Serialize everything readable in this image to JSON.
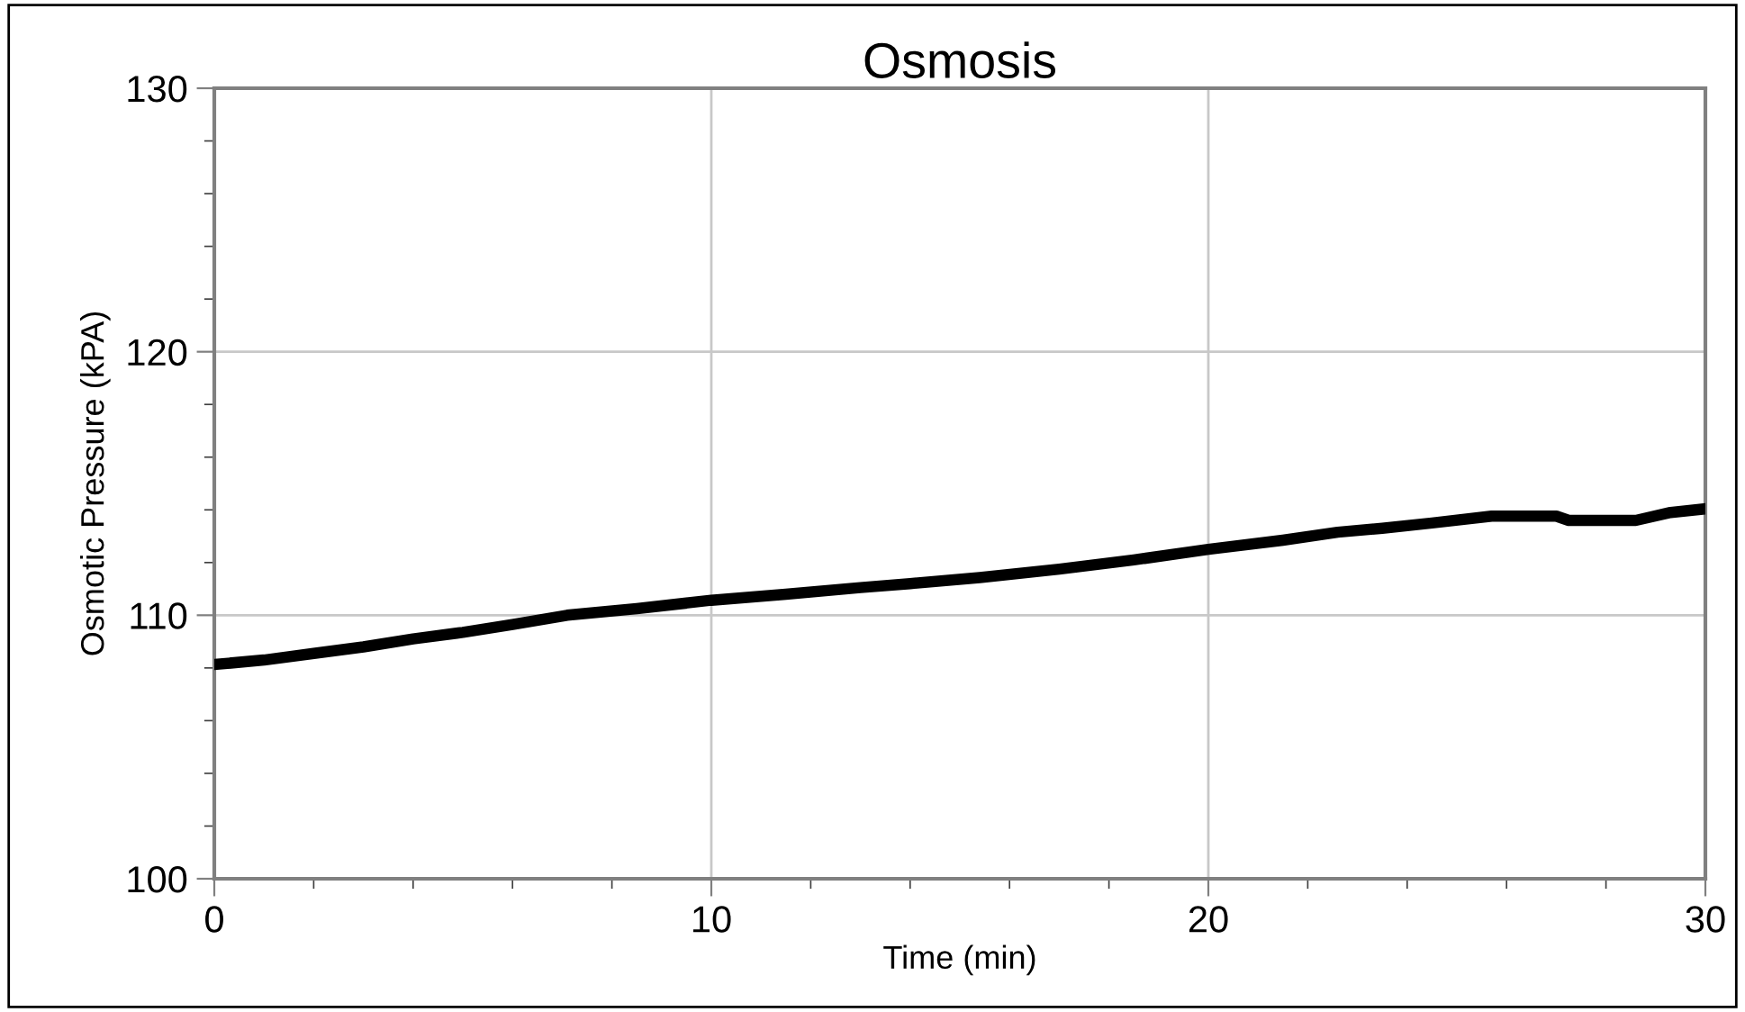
{
  "chart_data": {
    "type": "line",
    "title": "Osmosis",
    "xlabel": "Time (min)",
    "ylabel": "Osmotic Pressure (kPA)",
    "x": [
      0,
      1,
      2,
      3,
      4,
      5,
      6,
      7.1,
      8.5,
      10,
      11.5,
      13,
      14,
      15.4,
      17,
      18.5,
      20,
      21.5,
      22.6,
      23.5,
      24.5,
      25.7,
      27,
      27.25,
      28.6,
      29.3,
      29.95
    ],
    "series": [
      {
        "color": "#000000",
        "values": [
          108.13,
          108.3,
          108.55,
          108.8,
          109.1,
          109.35,
          109.65,
          110.0,
          110.25,
          110.57,
          110.8,
          111.05,
          111.2,
          111.43,
          111.75,
          112.1,
          112.5,
          112.85,
          113.15,
          113.3,
          113.5,
          113.76,
          113.76,
          113.6,
          113.6,
          113.9,
          114.03
        ]
      }
    ],
    "xlim": [
      0,
      30
    ],
    "ylim": [
      100,
      130
    ],
    "xticks": [
      0,
      10,
      20,
      30
    ],
    "yticks": [
      100,
      110,
      120,
      130
    ],
    "grid": true,
    "line_style": "solid",
    "marker": "none"
  }
}
